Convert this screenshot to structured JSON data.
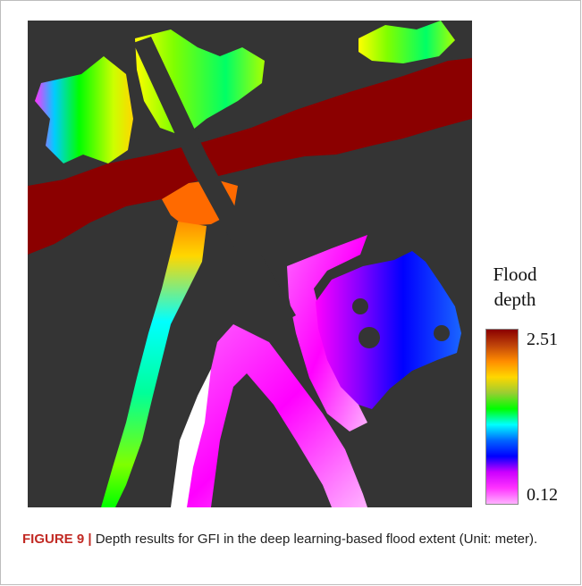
{
  "legend": {
    "title_line1": "Flood",
    "title_line2": "depth",
    "max_label": "2.51",
    "min_label": "0.12",
    "gradient_colors": [
      "#8b0000",
      "#c0440a",
      "#ff8c00",
      "#ffd700",
      "#9acd32",
      "#00ff00",
      "#00ffff",
      "#0066ff",
      "#0000ff",
      "#cc00ff",
      "#ff33ff",
      "#ffb3ff"
    ]
  },
  "map": {
    "background_color": "#343434",
    "river_color": "#8b0000"
  },
  "caption": {
    "label": "FIGURE 9 |",
    "text": " Depth results for GFI in the deep learning-based flood extent (Unit: meter)."
  }
}
